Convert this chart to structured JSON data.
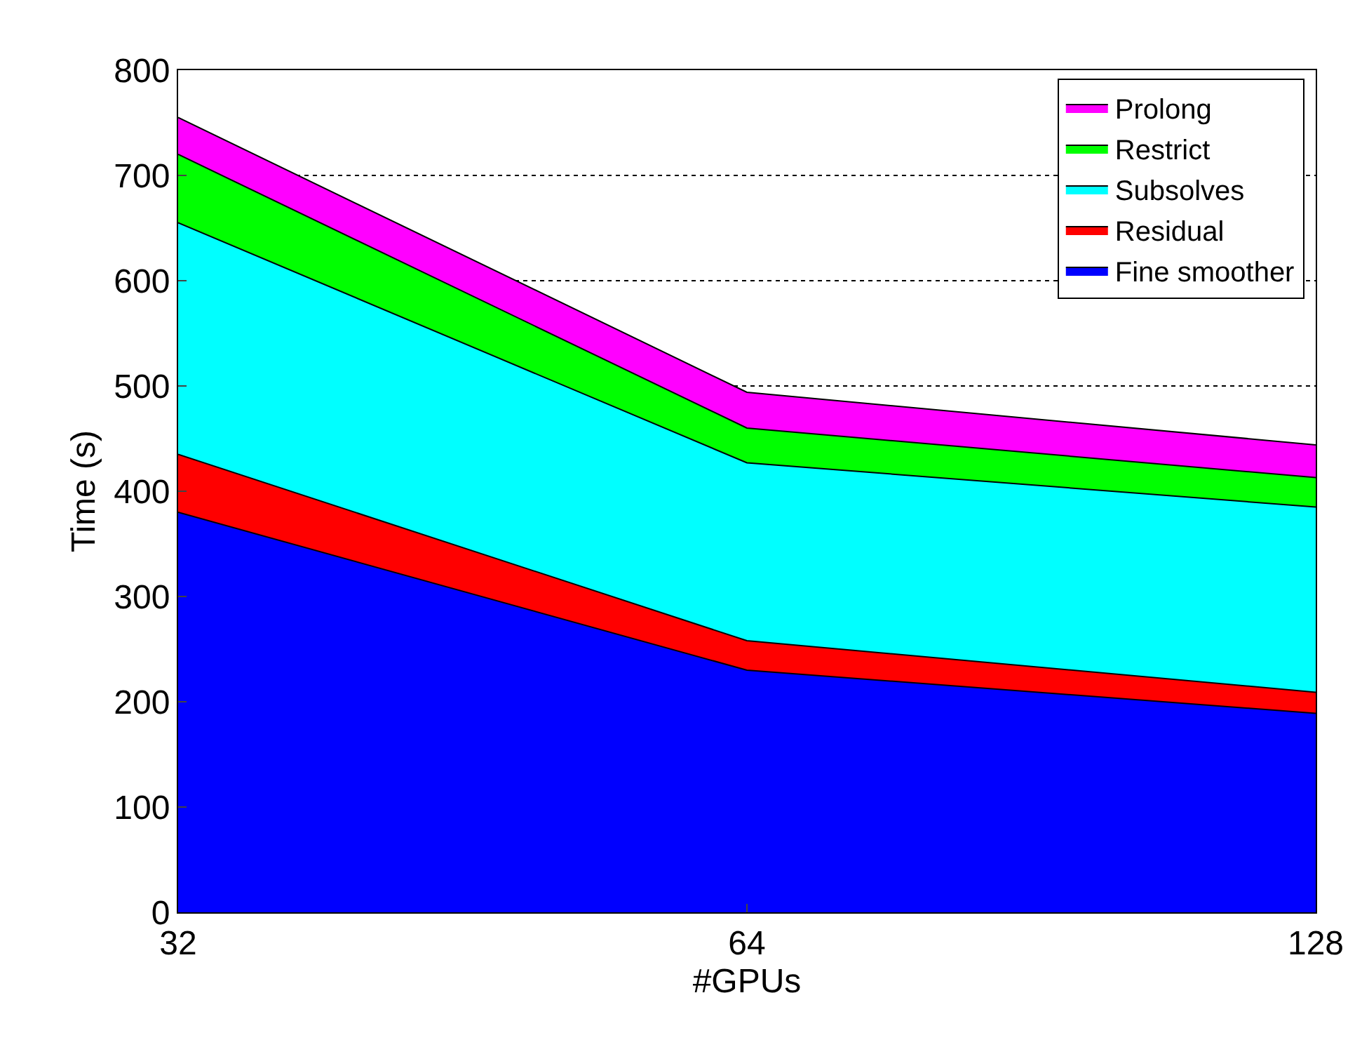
{
  "chart_data": {
    "type": "area",
    "stacked": true,
    "xlabel": "#GPUs",
    "ylabel": "Time (s)",
    "x": [
      32,
      64,
      128
    ],
    "log": "x",
    "xlim": [
      32,
      128
    ],
    "xticks": [
      32,
      64,
      128
    ],
    "ylim": [
      0,
      800
    ],
    "yticks": [
      0,
      100,
      200,
      300,
      400,
      500,
      600,
      700,
      800
    ],
    "grid": "y",
    "legend": "top right",
    "series": [
      {
        "name": "Fine smoother",
        "color": "#0000ff",
        "values": [
          380,
          230,
          189
        ]
      },
      {
        "name": "Residual",
        "color": "#ff0000",
        "values": [
          55,
          28,
          20
        ]
      },
      {
        "name": "Subsolves",
        "color": "#00ffff",
        "values": [
          220,
          169,
          176
        ]
      },
      {
        "name": "Restrict",
        "color": "#00ff00",
        "values": [
          65,
          33,
          28
        ]
      },
      {
        "name": "Prolong",
        "color": "#ff00ff",
        "values": [
          35,
          34,
          31
        ]
      }
    ]
  }
}
